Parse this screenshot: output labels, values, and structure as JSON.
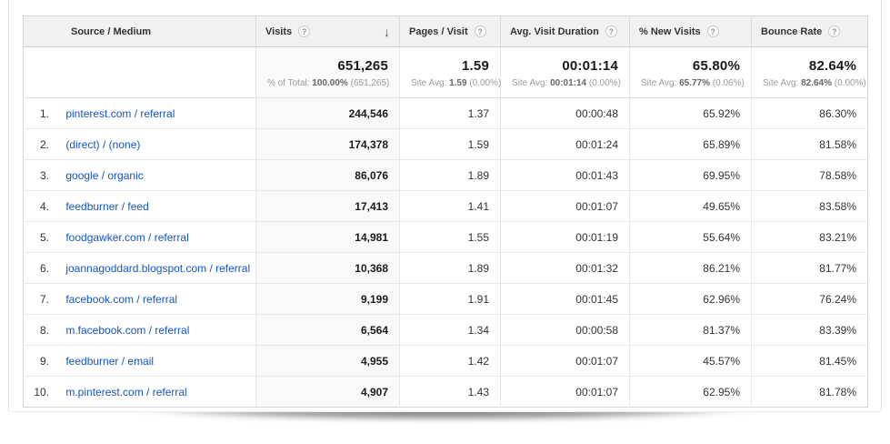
{
  "icons": {
    "help": "?",
    "sort_desc": "↓"
  },
  "table": {
    "columns": [
      {
        "label": "Source / Medium"
      },
      {
        "label": "Visits"
      },
      {
        "label": "Pages / Visit"
      },
      {
        "label": "Avg. Visit Duration"
      },
      {
        "label": "% New Visits"
      },
      {
        "label": "Bounce Rate"
      }
    ],
    "summary": {
      "visits": {
        "value": "651,265",
        "sub_label": "% of Total:",
        "sub_value": "100.00%",
        "sub_delta": "(651,265)"
      },
      "pages": {
        "value": "1.59",
        "sub_label": "Site Avg:",
        "sub_value": "1.59",
        "sub_delta": "(0.00%)"
      },
      "duration": {
        "value": "00:01:14",
        "sub_label": "Site Avg:",
        "sub_value": "00:01:14",
        "sub_delta": "(0.00%)"
      },
      "new_visits": {
        "value": "65.80%",
        "sub_label": "Site Avg:",
        "sub_value": "65.77%",
        "sub_delta": "(0.06%)"
      },
      "bounce": {
        "value": "82.64%",
        "sub_label": "Site Avg:",
        "sub_value": "82.64%",
        "sub_delta": "(0.00%)"
      }
    },
    "rows": [
      {
        "index": "1.",
        "source": "pinterest.com / referral",
        "visits": "244,546",
        "pages": "1.37",
        "duration": "00:00:48",
        "new_visits": "65.92%",
        "bounce": "86.30%"
      },
      {
        "index": "2.",
        "source": "(direct) / (none)",
        "visits": "174,378",
        "pages": "1.59",
        "duration": "00:01:24",
        "new_visits": "65.89%",
        "bounce": "81.58%"
      },
      {
        "index": "3.",
        "source": "google / organic",
        "visits": "86,076",
        "pages": "1.89",
        "duration": "00:01:43",
        "new_visits": "69.95%",
        "bounce": "78.58%"
      },
      {
        "index": "4.",
        "source": "feedburner / feed",
        "visits": "17,413",
        "pages": "1.41",
        "duration": "00:01:07",
        "new_visits": "49.65%",
        "bounce": "83.58%"
      },
      {
        "index": "5.",
        "source": "foodgawker.com / referral",
        "visits": "14,981",
        "pages": "1.55",
        "duration": "00:01:19",
        "new_visits": "55.64%",
        "bounce": "83.21%"
      },
      {
        "index": "6.",
        "source": "joannagoddard.blogspot.com / referral",
        "visits": "10,368",
        "pages": "1.89",
        "duration": "00:01:32",
        "new_visits": "86.21%",
        "bounce": "81.77%"
      },
      {
        "index": "7.",
        "source": "facebook.com / referral",
        "visits": "9,199",
        "pages": "1.91",
        "duration": "00:01:45",
        "new_visits": "62.96%",
        "bounce": "76.24%"
      },
      {
        "index": "8.",
        "source": "m.facebook.com / referral",
        "visits": "6,564",
        "pages": "1.34",
        "duration": "00:00:58",
        "new_visits": "81.37%",
        "bounce": "83.39%"
      },
      {
        "index": "9.",
        "source": "feedburner / email",
        "visits": "4,955",
        "pages": "1.42",
        "duration": "00:01:07",
        "new_visits": "45.57%",
        "bounce": "81.45%"
      },
      {
        "index": "10.",
        "source": "m.pinterest.com / referral",
        "visits": "4,907",
        "pages": "1.43",
        "duration": "00:01:07",
        "new_visits": "62.95%",
        "bounce": "81.78%"
      }
    ]
  }
}
